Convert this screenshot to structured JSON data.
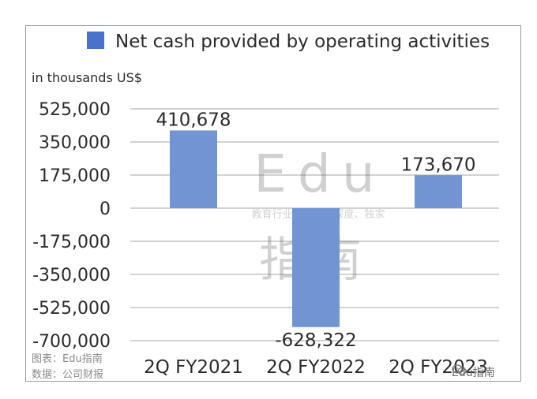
{
  "chart_data": {
    "type": "bar",
    "categories": [
      "2Q FY2021",
      "2Q FY2022",
      "2Q FY2023"
    ],
    "series": [
      {
        "name": "Net cash provided by operating activities",
        "values": [
          410678,
          -628322,
          173670
        ]
      }
    ],
    "data_labels": [
      "410,678",
      "-628,322",
      "173,670"
    ],
    "ylabel": "in thousands US$",
    "ylim": [
      -700000,
      525000
    ],
    "yticks": [
      525000,
      350000,
      175000,
      0,
      -175000,
      -350000,
      -525000,
      -700000
    ],
    "ytick_labels": [
      "525,000",
      "350,000",
      "175,000",
      "0",
      "-175,000",
      "-350,000",
      "-525,000",
      "-700,000"
    ],
    "grid": true,
    "legend": "top",
    "bar_color": "#7194d2",
    "legend_color": "#4a73c8"
  },
  "watermark": {
    "main": "Edu",
    "sub": "教育行业，前沿、深度、独家",
    "cn": "指南"
  },
  "footer": {
    "source_line1": "图表：Edu指南",
    "source_line2": "数据：公司财报"
  },
  "badge": {
    "icon": "wechat-icon",
    "text": "Edu指南"
  }
}
